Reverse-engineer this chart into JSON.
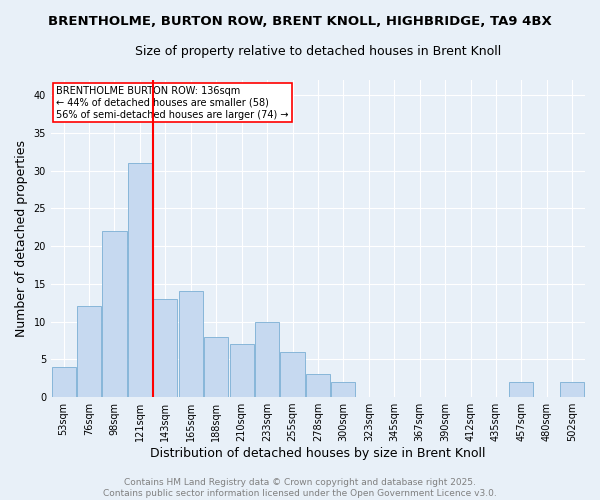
{
  "title1": "BRENTHOLME, BURTON ROW, BRENT KNOLL, HIGHBRIDGE, TA9 4BX",
  "title2": "Size of property relative to detached houses in Brent Knoll",
  "xlabel": "Distribution of detached houses by size in Brent Knoll",
  "ylabel": "Number of detached properties",
  "categories": [
    "53sqm",
    "76sqm",
    "98sqm",
    "121sqm",
    "143sqm",
    "165sqm",
    "188sqm",
    "210sqm",
    "233sqm",
    "255sqm",
    "278sqm",
    "300sqm",
    "323sqm",
    "345sqm",
    "367sqm",
    "390sqm",
    "412sqm",
    "435sqm",
    "457sqm",
    "480sqm",
    "502sqm"
  ],
  "values": [
    4,
    12,
    22,
    31,
    13,
    14,
    8,
    7,
    10,
    6,
    3,
    2,
    0,
    0,
    0,
    0,
    0,
    0,
    2,
    0,
    2
  ],
  "bar_color": "#c6d9f0",
  "bar_edge_color": "#7bafd4",
  "vline_index": 4,
  "vline_color": "red",
  "annotation_title": "BRENTHOLME BURTON ROW: 136sqm",
  "annotation_line2": "← 44% of detached houses are smaller (58)",
  "annotation_line3": "56% of semi-detached houses are larger (74) →",
  "ylim": [
    0,
    42
  ],
  "yticks": [
    0,
    5,
    10,
    15,
    20,
    25,
    30,
    35,
    40
  ],
  "footer1": "Contains HM Land Registry data © Crown copyright and database right 2025.",
  "footer2": "Contains public sector information licensed under the Open Government Licence v3.0.",
  "bg_color": "#e8f0f8",
  "title_fontsize": 9.5,
  "subtitle_fontsize": 9,
  "axis_label_fontsize": 9,
  "tick_fontsize": 7,
  "annotation_fontsize": 7,
  "footer_fontsize": 6.5
}
